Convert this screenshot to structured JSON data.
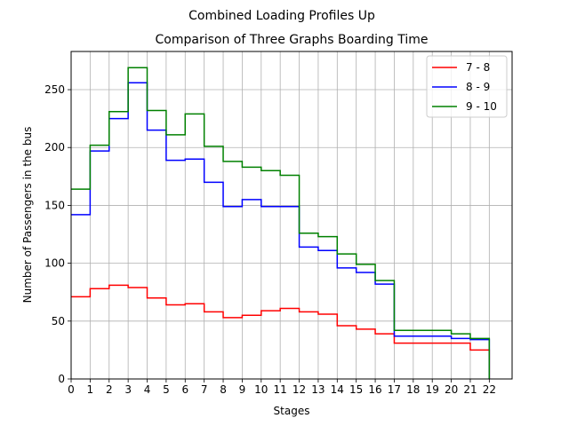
{
  "chart_data": {
    "type": "line",
    "step": "post",
    "suptitle": "Combined Loading Profiles Up",
    "title": "Comparison of Three Graphs Boarding Time",
    "xlabel": "Stages",
    "ylabel": "Number of Passengers in the bus",
    "xlim": [
      0,
      23.2
    ],
    "ylim": [
      0,
      283
    ],
    "xticks": [
      0,
      1,
      2,
      3,
      4,
      5,
      6,
      7,
      8,
      9,
      10,
      11,
      12,
      13,
      14,
      15,
      16,
      17,
      18,
      19,
      20,
      21,
      22
    ],
    "yticks": [
      0,
      50,
      100,
      150,
      200,
      250
    ],
    "grid": true,
    "legend_position": "upper right",
    "x": [
      0,
      1,
      2,
      3,
      4,
      5,
      6,
      7,
      8,
      9,
      10,
      11,
      12,
      13,
      14,
      15,
      16,
      17,
      18,
      19,
      20,
      21,
      22
    ],
    "series": [
      {
        "name": "7 - 8",
        "color": "#ff0000",
        "values": [
          71,
          78,
          81,
          79,
          70,
          64,
          65,
          58,
          53,
          55,
          59,
          61,
          58,
          56,
          46,
          43,
          39,
          31,
          31,
          31,
          31,
          25,
          0
        ]
      },
      {
        "name": "8 - 9",
        "color": "#0000ff",
        "values": [
          142,
          197,
          225,
          256,
          215,
          189,
          190,
          170,
          149,
          155,
          149,
          149,
          114,
          111,
          96,
          92,
          82,
          37,
          37,
          37,
          35,
          34,
          0
        ]
      },
      {
        "name": "9 - 10",
        "color": "#008000",
        "values": [
          164,
          202,
          231,
          269,
          232,
          211,
          229,
          201,
          188,
          183,
          180,
          176,
          126,
          123,
          108,
          99,
          85,
          42,
          42,
          42,
          39,
          35,
          0
        ]
      }
    ]
  }
}
